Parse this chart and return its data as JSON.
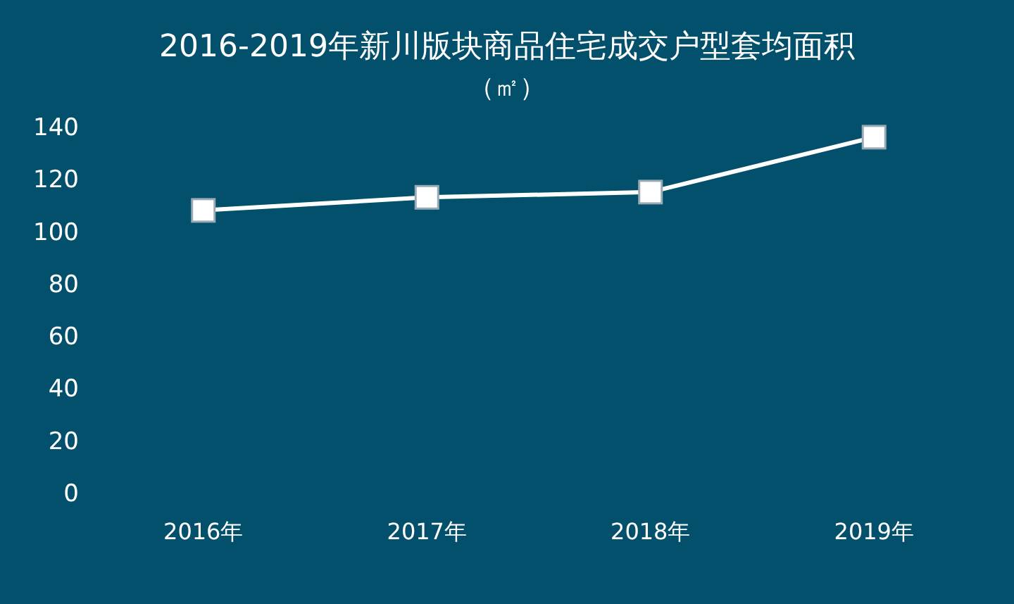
{
  "chart_data": {
    "type": "line",
    "title": "2016-2019年新川版块商品住宅成交户型套均面积",
    "subtitle": "（㎡）",
    "categories": [
      "2016年",
      "2017年",
      "2018年",
      "2019年"
    ],
    "series": [
      {
        "color": "#ffffff",
        "values": [
          108,
          113,
          115,
          136
        ]
      }
    ],
    "ylim": [
      0,
      140
    ],
    "yticks": [
      0,
      20,
      40,
      60,
      80,
      100,
      120,
      140
    ],
    "grid": false,
    "marker": "square",
    "line_style": "solid"
  }
}
